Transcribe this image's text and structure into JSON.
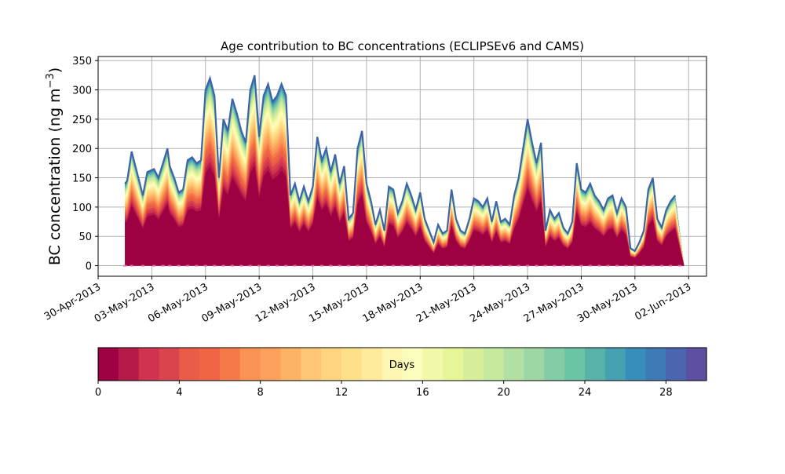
{
  "chart_data": {
    "type": "area",
    "title": "Age contribution to BC concentrations (ECLIPSEv6 and CAMS)",
    "ylabel": "BC concentration (ng m",
    "ylabel_sup": "−3",
    "ylabel_close": ")",
    "xlabel": "",
    "ylim": [
      -18,
      357
    ],
    "yticks": [
      "0",
      "50",
      "100",
      "150",
      "200",
      "250",
      "300",
      "350"
    ],
    "ytick_values": [
      0,
      50,
      100,
      150,
      200,
      250,
      300,
      350
    ],
    "xlim": [
      "2013-04-30T00:00",
      "2013-06-03T00:00"
    ],
    "xticks": [
      "30-Apr-2013",
      "03-May-2013",
      "06-May-2013",
      "09-May-2013",
      "12-May-2013",
      "15-May-2013",
      "18-May-2013",
      "21-May-2013",
      "24-May-2013",
      "27-May-2013",
      "30-May-2013",
      "02-Jun-2013"
    ],
    "xtick_dates": [
      "2013-04-30",
      "2013-05-03",
      "2013-05-06",
      "2013-05-09",
      "2013-05-12",
      "2013-05-15",
      "2013-05-18",
      "2013-05-21",
      "2013-05-24",
      "2013-05-27",
      "2013-05-30",
      "2013-06-02"
    ],
    "grid": true,
    "x": [
      "2013-05-01T12:00",
      "2013-05-01T15:00",
      "2013-05-01T21:00",
      "2013-05-02T06:00",
      "2013-05-02T12:00",
      "2013-05-02T18:00",
      "2013-05-03T03:00",
      "2013-05-03T09:00",
      "2013-05-03T15:00",
      "2013-05-03T21:00",
      "2013-05-04T00:00",
      "2013-05-04T06:00",
      "2013-05-04T12:00",
      "2013-05-04T18:00",
      "2013-05-05T00:00",
      "2013-05-05T06:00",
      "2013-05-05T12:00",
      "2013-05-05T18:00",
      "2013-05-06T00:00",
      "2013-05-06T06:00",
      "2013-05-06T12:00",
      "2013-05-06T18:00",
      "2013-05-07T00:00",
      "2013-05-07T06:00",
      "2013-05-07T12:00",
      "2013-05-07T18:00",
      "2013-05-08T00:00",
      "2013-05-08T06:00",
      "2013-05-08T12:00",
      "2013-05-08T18:00",
      "2013-05-09T00:00",
      "2013-05-09T06:00",
      "2013-05-09T12:00",
      "2013-05-09T18:00",
      "2013-05-10T00:00",
      "2013-05-10T06:00",
      "2013-05-10T12:00",
      "2013-05-10T18:00",
      "2013-05-11T00:00",
      "2013-05-11T06:00",
      "2013-05-11T12:00",
      "2013-05-11T18:00",
      "2013-05-12T00:00",
      "2013-05-12T06:00",
      "2013-05-12T12:00",
      "2013-05-12T18:00",
      "2013-05-13T00:00",
      "2013-05-13T06:00",
      "2013-05-13T12:00",
      "2013-05-13T18:00",
      "2013-05-14T00:00",
      "2013-05-14T06:00",
      "2013-05-14T12:00",
      "2013-05-14T18:00",
      "2013-05-15T00:00",
      "2013-05-15T06:00",
      "2013-05-15T12:00",
      "2013-05-15T18:00",
      "2013-05-16T00:00",
      "2013-05-16T06:00",
      "2013-05-16T12:00",
      "2013-05-16T18:00",
      "2013-05-17T00:00",
      "2013-05-17T06:00",
      "2013-05-17T12:00",
      "2013-05-17T18:00",
      "2013-05-18T00:00",
      "2013-05-18T06:00",
      "2013-05-18T12:00",
      "2013-05-18T18:00",
      "2013-05-19T00:00",
      "2013-05-19T06:00",
      "2013-05-19T12:00",
      "2013-05-19T18:00",
      "2013-05-20T00:00",
      "2013-05-20T06:00",
      "2013-05-20T12:00",
      "2013-05-20T18:00",
      "2013-05-21T00:00",
      "2013-05-21T06:00",
      "2013-05-21T12:00",
      "2013-05-21T18:00",
      "2013-05-22T00:00",
      "2013-05-22T06:00",
      "2013-05-22T12:00",
      "2013-05-22T18:00",
      "2013-05-23T00:00",
      "2013-05-23T06:00",
      "2013-05-23T12:00",
      "2013-05-23T18:00",
      "2013-05-24T00:00",
      "2013-05-24T06:00",
      "2013-05-24T12:00",
      "2013-05-24T18:00",
      "2013-05-25T00:00",
      "2013-05-25T06:00",
      "2013-05-25T12:00",
      "2013-05-25T18:00",
      "2013-05-26T00:00",
      "2013-05-26T06:00",
      "2013-05-26T12:00",
      "2013-05-26T18:00",
      "2013-05-27T00:00",
      "2013-05-27T06:00",
      "2013-05-27T12:00",
      "2013-05-27T18:00",
      "2013-05-28T00:00",
      "2013-05-28T06:00",
      "2013-05-28T12:00",
      "2013-05-28T18:00",
      "2013-05-29T00:00",
      "2013-05-29T06:00",
      "2013-05-29T12:00",
      "2013-05-29T18:00",
      "2013-05-30T00:00",
      "2013-05-30T06:00",
      "2013-05-30T12:00",
      "2013-05-30T18:00",
      "2013-05-31T00:00",
      "2013-05-31T06:00",
      "2013-05-31T12:00",
      "2013-05-31T18:00",
      "2013-06-01T00:00",
      "2013-06-01T06:00",
      "2013-06-01T12:00",
      "2013-06-01T18:00"
    ],
    "total": [
      140,
      145,
      195,
      150,
      120,
      160,
      165,
      150,
      175,
      200,
      170,
      150,
      125,
      130,
      180,
      185,
      175,
      180,
      300,
      320,
      290,
      150,
      250,
      230,
      285,
      260,
      230,
      210,
      300,
      325,
      220,
      290,
      310,
      280,
      290,
      310,
      290,
      120,
      140,
      110,
      135,
      110,
      135,
      220,
      180,
      200,
      160,
      190,
      140,
      170,
      80,
      90,
      200,
      230,
      140,
      110,
      70,
      95,
      60,
      135,
      130,
      90,
      110,
      140,
      120,
      95,
      125,
      80,
      60,
      40,
      70,
      55,
      60,
      130,
      80,
      60,
      55,
      80,
      115,
      110,
      100,
      115,
      75,
      110,
      75,
      80,
      70,
      120,
      150,
      200,
      250,
      210,
      175,
      210,
      60,
      95,
      80,
      90,
      65,
      55,
      75,
      175,
      130,
      125,
      140,
      120,
      110,
      95,
      115,
      120,
      90,
      115,
      100,
      30,
      25,
      40,
      60,
      130,
      150,
      80,
      65,
      95,
      110,
      120
    ],
    "age_colorbar": {
      "label": "Days",
      "ticks": [
        "0",
        "4",
        "8",
        "12",
        "16",
        "20",
        "24",
        "28"
      ],
      "tick_values": [
        0,
        4,
        8,
        12,
        16,
        20,
        24,
        28
      ],
      "range": [
        0,
        30
      ],
      "colors": [
        "#9e0142",
        "#b61a49",
        "#cf334e",
        "#d9444e",
        "#e95c47",
        "#ef6645",
        "#f67a49",
        "#f99355",
        "#fba15b",
        "#fdb365",
        "#fdc574",
        "#fed481",
        "#fee08b",
        "#feeb9d",
        "#fef6b1",
        "#fbfdbd",
        "#f1f9a9",
        "#e6f598",
        "#d5ee9b",
        "#c6e89f",
        "#b2e0a2",
        "#9cd7a4",
        "#83cca5",
        "#6bc4a4",
        "#59b2aa",
        "#45a0b0",
        "#378ebb",
        "#3e7ab6",
        "#4b65ae",
        "#5e4fa2"
      ]
    },
    "bottom_marks_color": "#dd66aa"
  }
}
